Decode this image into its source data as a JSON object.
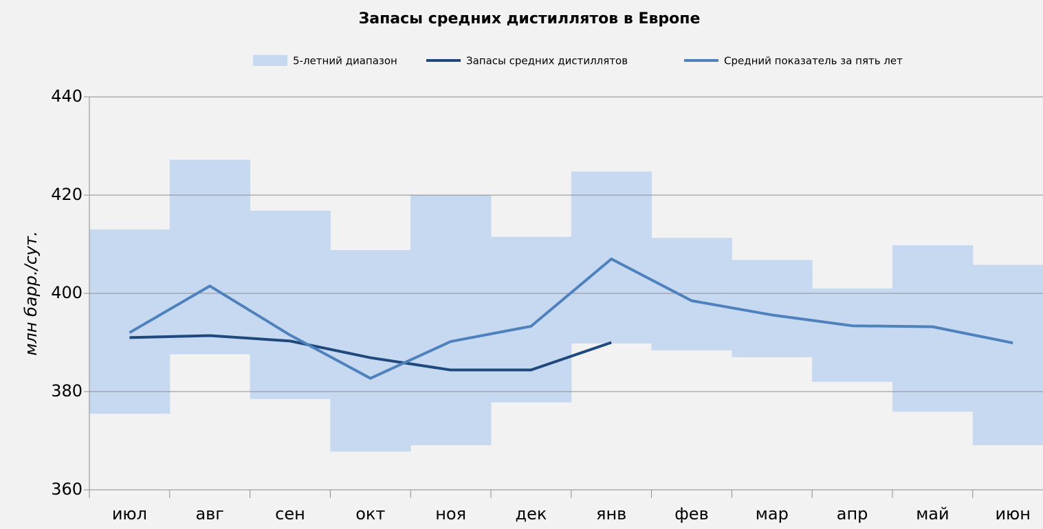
{
  "chart_data": {
    "type": "line",
    "title": "Запасы средних дистиллятов в Европе",
    "y_label": "млн барр./сут.",
    "categories": [
      "июл",
      "авг",
      "сен",
      "окт",
      "ноя",
      "дек",
      "янв",
      "фев",
      "мар",
      "апр",
      "май",
      "июн"
    ],
    "range": {
      "name": "5-летний диапазон",
      "color": "#c6d9f0",
      "high": [
        413,
        427.2,
        416.8,
        408.8,
        420,
        411.5,
        424.8,
        411.3,
        406.8,
        401,
        409.8,
        405.8
      ],
      "low": [
        375.5,
        387.6,
        378.5,
        367.8,
        369.1,
        377.8,
        389.8,
        388.4,
        387,
        382,
        375.9,
        369.1
      ]
    },
    "series": [
      {
        "name": "Запасы средних дистиллятов",
        "color": "#1f497d",
        "values": [
          391,
          391.4,
          390.3,
          386.9,
          384.4,
          384.4,
          390,
          null,
          null,
          null,
          null,
          null
        ]
      },
      {
        "name": "Средний показатель за пять лет",
        "color": "#4f81bd",
        "values": [
          392,
          401.5,
          391.5,
          382.7,
          390.2,
          393.3,
          407,
          398.5,
          395.6,
          393.4,
          393.2,
          389.9
        ]
      }
    ],
    "ylim": [
      360,
      440
    ],
    "yticks": [
      360,
      380,
      400,
      420,
      440
    ],
    "grid": true
  }
}
